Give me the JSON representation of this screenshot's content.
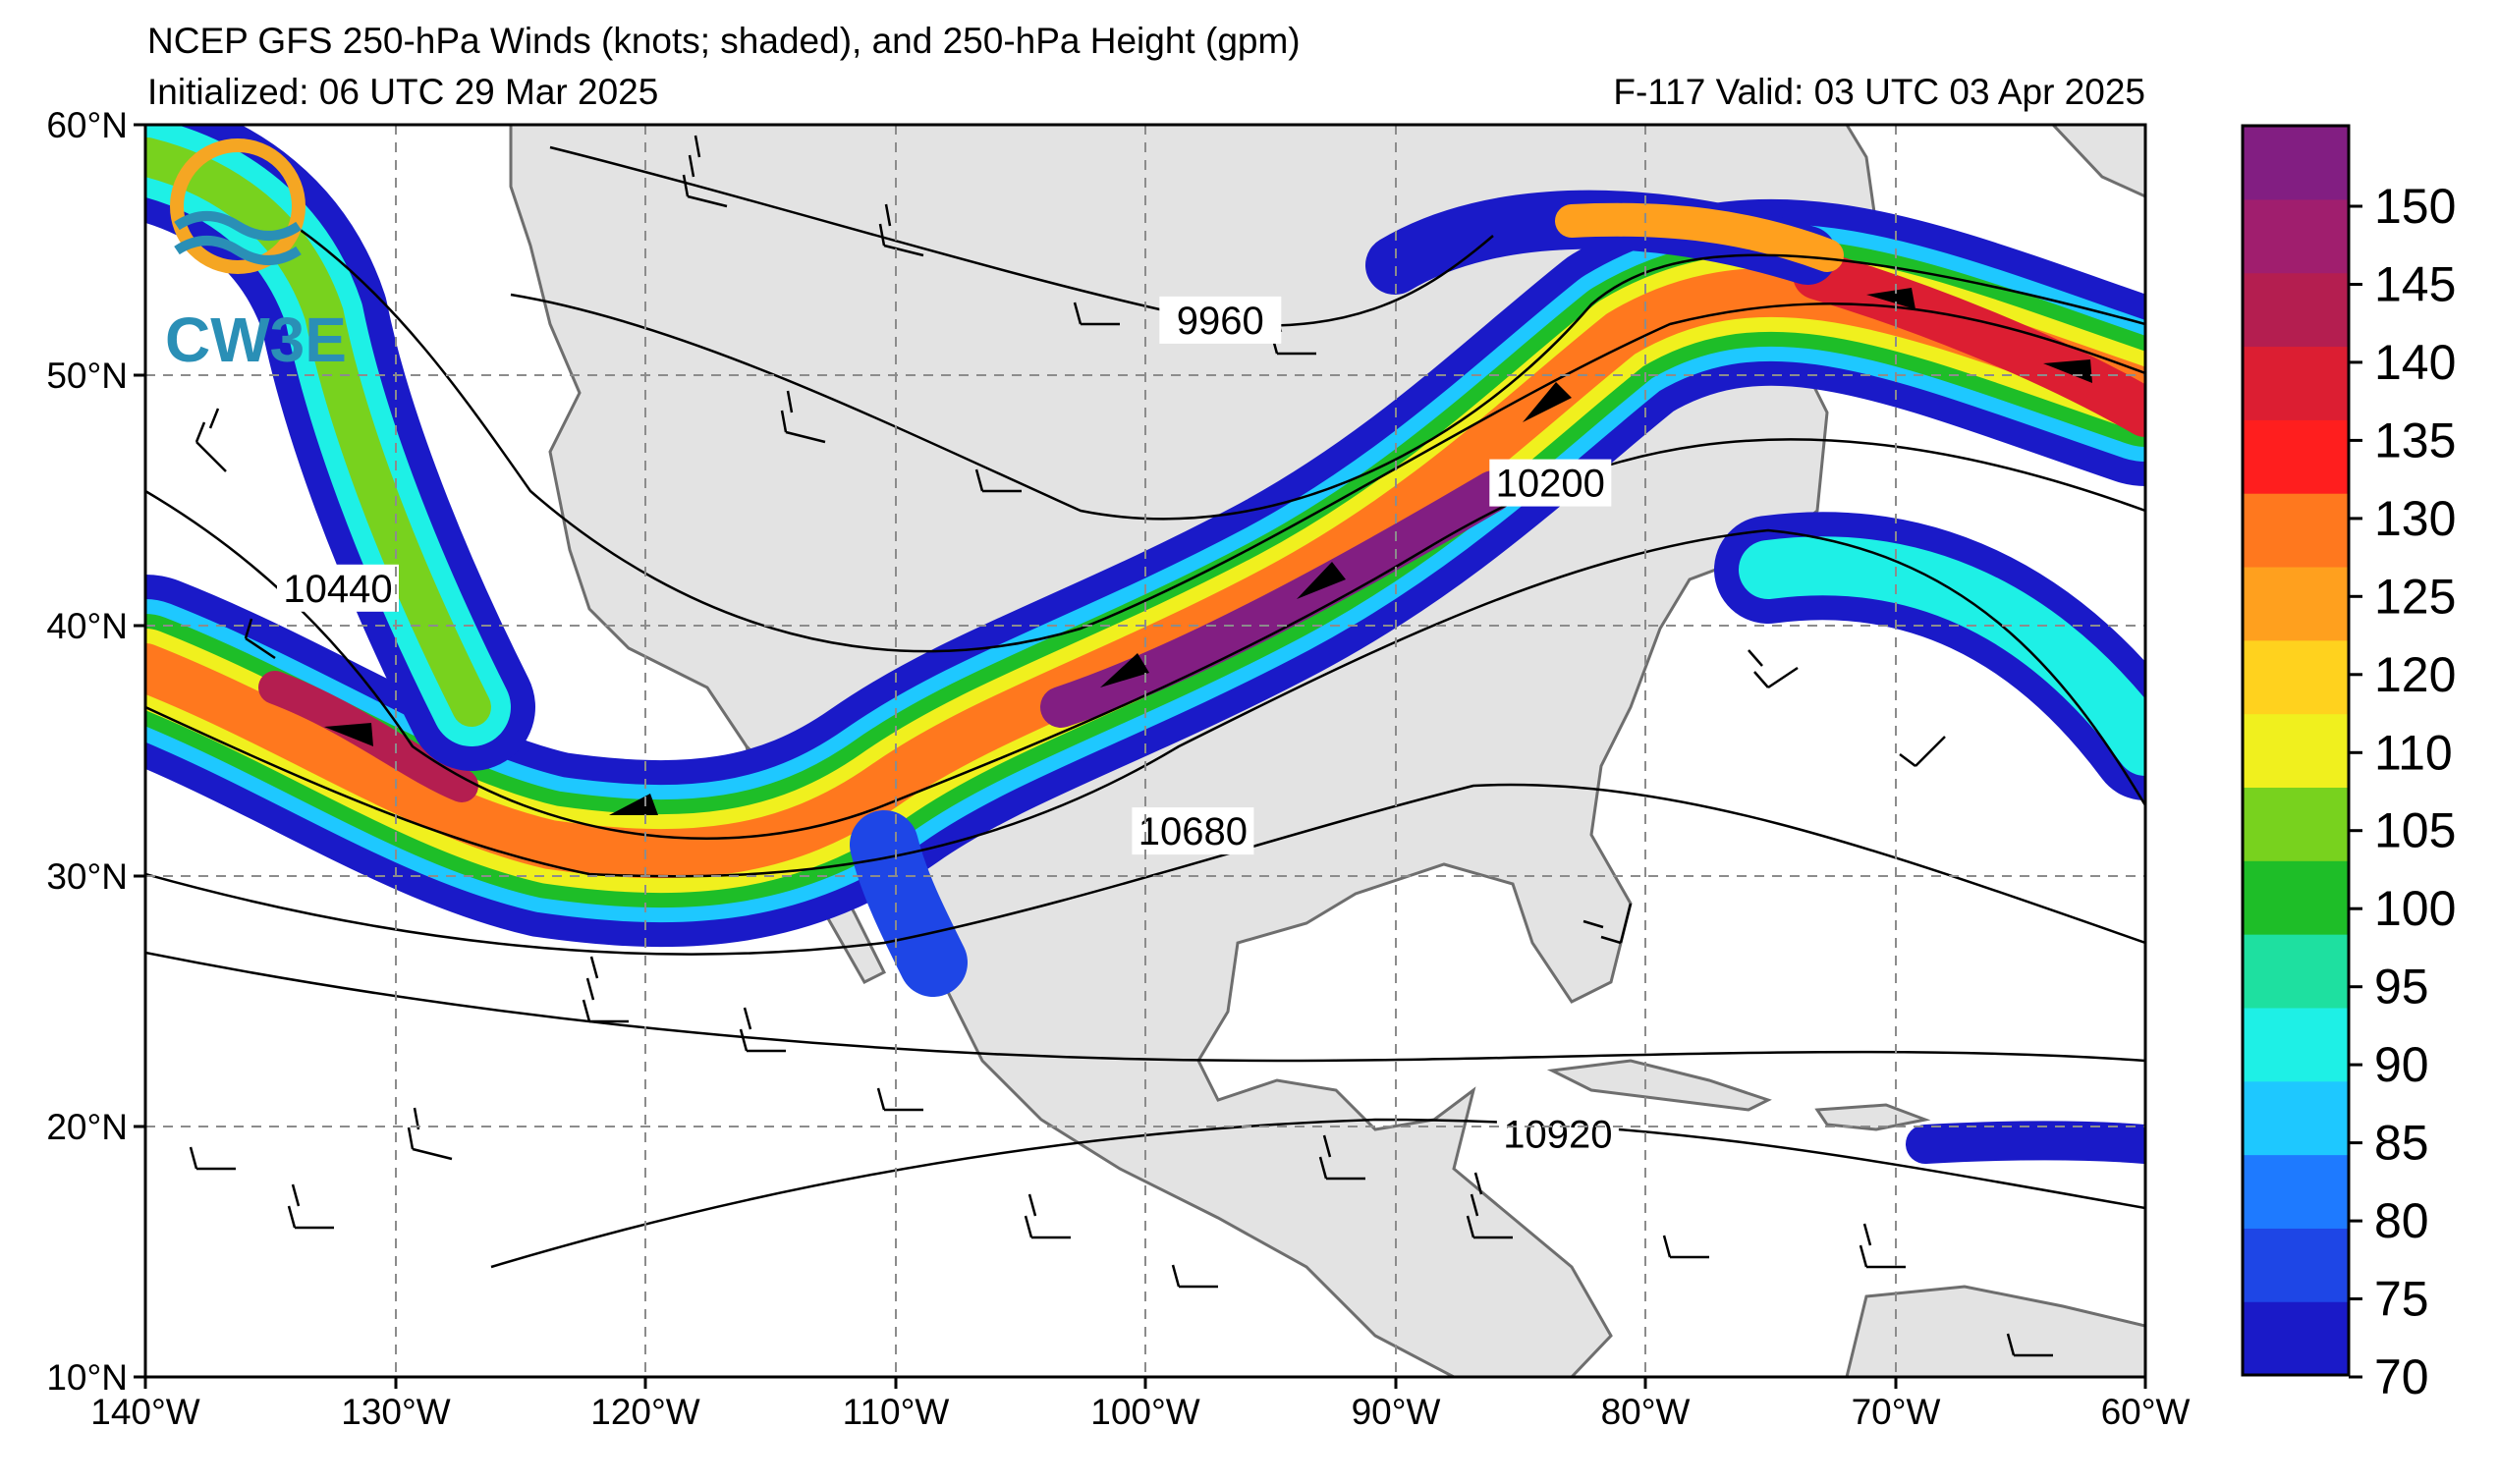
{
  "title": {
    "line1": "NCEP GFS 250-hPa Winds (knots; shaded), and 250-hPa Height (gpm)",
    "initialized": "Initialized: 06 UTC 29 Mar 2025",
    "valid": "F-117  Valid: 03 UTC 03 Apr 2025"
  },
  "map": {
    "lon_range": [
      -140,
      -60
    ],
    "lat_range": [
      10,
      60
    ],
    "gridlines": "dashed",
    "lat_ticks": [
      "60°N",
      "50°N",
      "40°N",
      "30°N",
      "20°N",
      "10°N"
    ],
    "lon_ticks": [
      "140°W",
      "130°W",
      "120°W",
      "110°W",
      "100°W",
      "90°W",
      "80°W",
      "70°W",
      "60°W"
    ],
    "land_color": "#e3e3e3",
    "ocean_color": "#ffffff"
  },
  "contour_labels": [
    {
      "text": "9960",
      "lon": -97,
      "lat": 52.2
    },
    {
      "text": "10200",
      "lon": -83.8,
      "lat": 45.7
    },
    {
      "text": "10440",
      "lon": -132.3,
      "lat": 41.5
    },
    {
      "text": "10680",
      "lon": -98.1,
      "lat": 31.8
    },
    {
      "text": "10920",
      "lon": -83.5,
      "lat": 19.7
    }
  ],
  "colorbar": {
    "labels": [
      "150",
      "145",
      "140",
      "135",
      "130",
      "125",
      "120",
      "110",
      "105",
      "100",
      "95",
      "90",
      "85",
      "80",
      "75",
      "70"
    ],
    "colors": [
      "#1a1ac8",
      "#1e46e6",
      "#1e7aff",
      "#1ec8ff",
      "#1ef0e6",
      "#1ee0a0",
      "#1ebe28",
      "#78d21e",
      "#f0f01e",
      "#ffd21e",
      "#ffa01e",
      "#ff781e",
      "#ff1e1e",
      "#dc1e32",
      "#b41e50",
      "#a01e6e",
      "#821e82"
    ]
  },
  "logo": {
    "text": "CW3E"
  }
}
